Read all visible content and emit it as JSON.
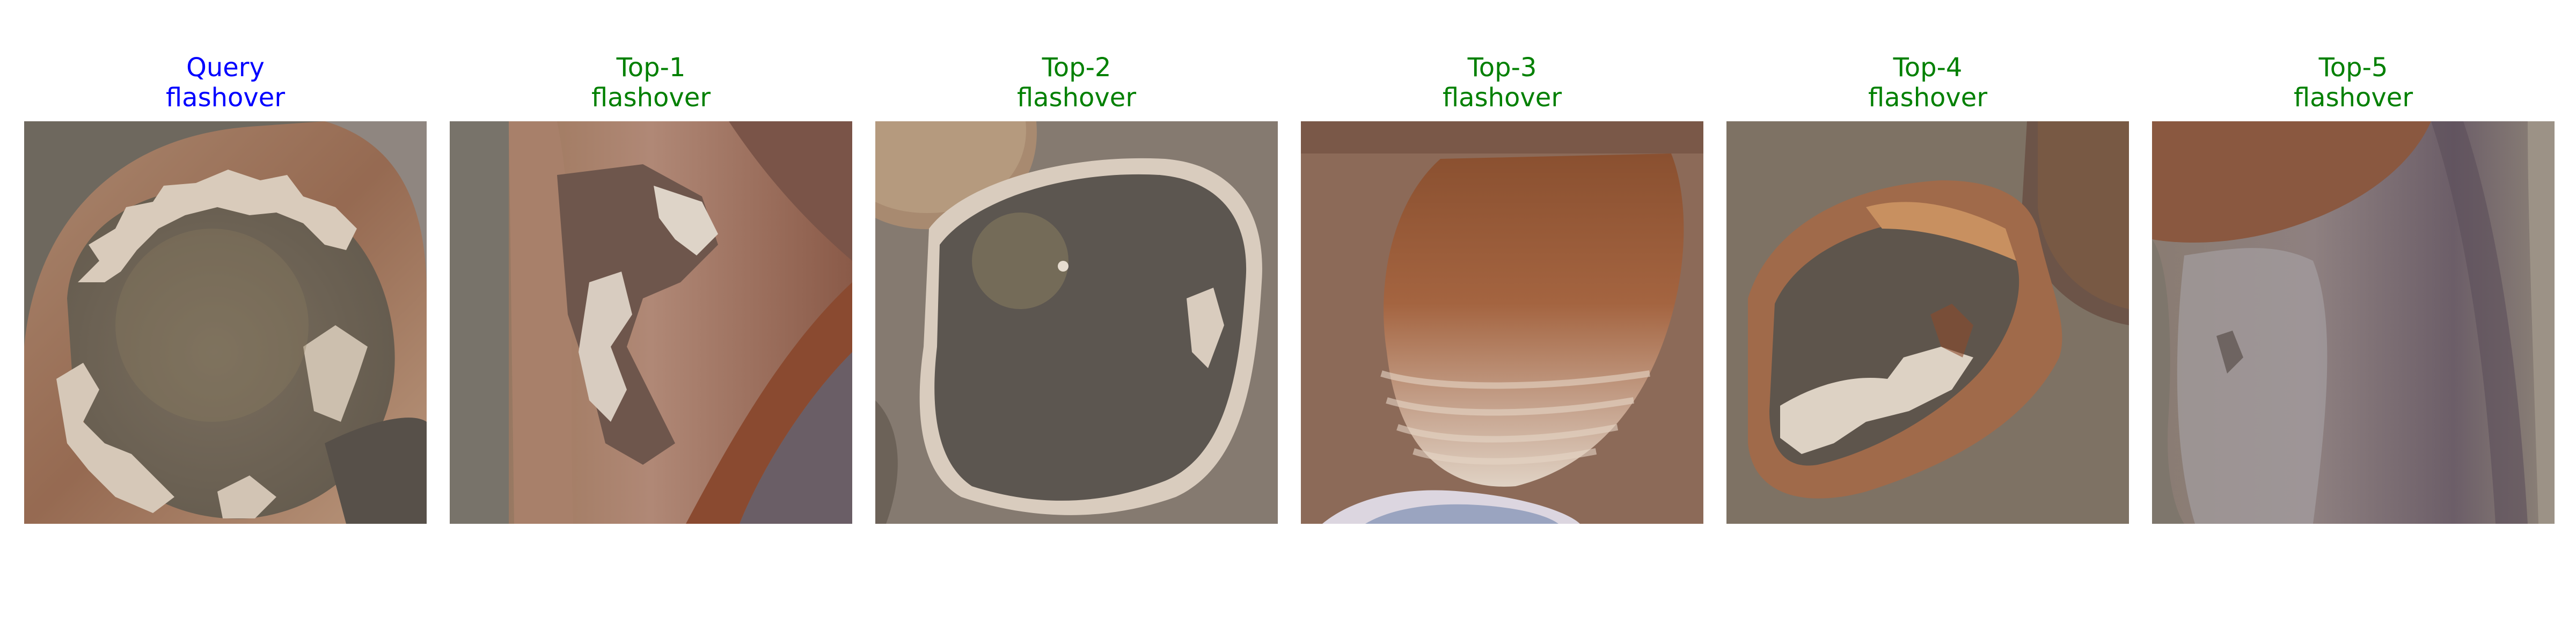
{
  "colors": {
    "query_caption": "#0000ff",
    "match_caption": "#008000"
  },
  "panels": [
    {
      "rank": "Query",
      "label": "flashover",
      "kind": "query"
    },
    {
      "rank": "Top-1",
      "label": "flashover",
      "kind": "match"
    },
    {
      "rank": "Top-2",
      "label": "flashover",
      "kind": "match"
    },
    {
      "rank": "Top-3",
      "label": "flashover",
      "kind": "match"
    },
    {
      "rank": "Top-4",
      "label": "flashover",
      "kind": "match"
    },
    {
      "rank": "Top-5",
      "label": "flashover",
      "kind": "match"
    }
  ]
}
